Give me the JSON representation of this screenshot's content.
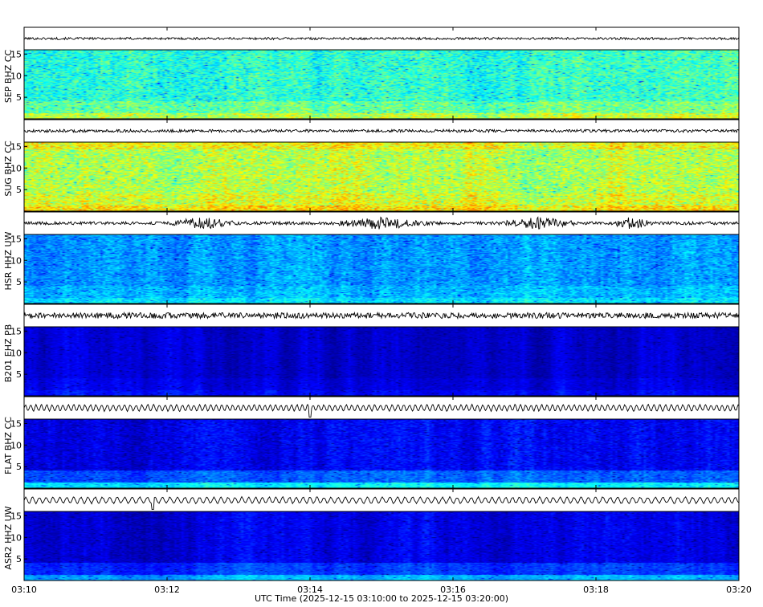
{
  "chart_data": {
    "type": "spectrogram",
    "xlabel": "UTC Time (2025-12-15 03:10:00 to 2025-12-15 03:20:00)",
    "x_ticks": [
      "03:10",
      "03:12",
      "03:14",
      "03:16",
      "03:18",
      "03:20"
    ],
    "xlim": [
      "03:10",
      "03:20"
    ],
    "frequency_ticks": [
      5,
      10,
      15
    ],
    "ylim": [
      0,
      16
    ],
    "panels": [
      {
        "station": "SEP BHZ CC",
        "trace": "low-amplitude noise",
        "spectrogram_level": "medium (cyan/blue)"
      },
      {
        "station": "SUG BHZ CC",
        "trace": "low-amplitude noise",
        "spectrogram_level": "high (cyan/yellow)"
      },
      {
        "station": "HSR HHZ UW",
        "trace": "bursts near 03:12:30, 03:15:00, 03:17:00, 03:18:00",
        "spectrogram_level": "medium-low (blue)"
      },
      {
        "station": "B201 EHZ PB",
        "trace": "steady noise",
        "spectrogram_level": "low (dark blue)"
      },
      {
        "station": "FLAT BHZ CC",
        "trace": "oscillatory, spike near 03:14:00",
        "spectrogram_level": "low (dark blue, energy at low frequency)"
      },
      {
        "station": "ASR2 HHZ UW",
        "trace": "oscillatory, spike near 03:11:50",
        "spectrogram_level": "low (dark blue)"
      }
    ],
    "colors": {
      "low": "#00007f",
      "mid_low": "#0000ff",
      "mid": "#00bfff",
      "mid_high": "#7fff7f",
      "high": "#ffff00"
    }
  }
}
